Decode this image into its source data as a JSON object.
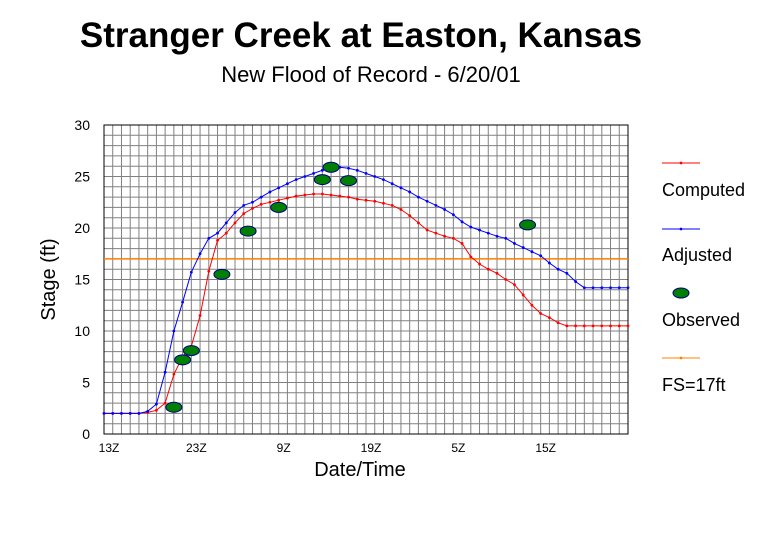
{
  "chart_data": {
    "type": "line",
    "title": "Stranger Creek at Easton, Kansas",
    "subtitle": "New Flood of Record - 6/20/01",
    "xlabel": "Date/Time",
    "ylabel": "Stage (ft)",
    "ylim": [
      0,
      30
    ],
    "yticks": [
      0,
      5,
      10,
      15,
      20,
      25,
      30
    ],
    "xlim_hours": [
      0,
      60
    ],
    "xticks": [
      {
        "h": 0,
        "label": "13Z"
      },
      {
        "h": 10,
        "label": "23Z"
      },
      {
        "h": 20,
        "label": "9Z"
      },
      {
        "h": 30,
        "label": "19Z"
      },
      {
        "h": 40,
        "label": "5Z"
      },
      {
        "h": 50,
        "label": "15Z"
      }
    ],
    "grid": true,
    "legend_position": "right",
    "series": [
      {
        "name": "Computed",
        "color": "#ff0000",
        "style": "line-dots",
        "x": [
          0,
          1,
          2,
          3,
          4,
          5,
          6,
          7,
          8,
          9,
          10,
          11,
          12,
          13,
          14,
          15,
          16,
          17,
          18,
          19,
          20,
          21,
          22,
          23,
          24,
          25,
          26,
          27,
          28,
          29,
          30,
          31,
          32,
          33,
          34,
          35,
          36,
          37,
          38,
          39,
          40,
          41,
          42,
          43,
          44,
          45,
          46,
          47,
          48,
          49,
          50,
          51,
          52,
          53,
          54,
          55,
          56,
          57,
          58,
          59,
          60
        ],
        "y": [
          2.0,
          2.0,
          2.0,
          2.0,
          2.0,
          2.1,
          2.3,
          3.0,
          5.8,
          7.5,
          8.5,
          11.5,
          15.8,
          18.8,
          19.5,
          20.5,
          21.4,
          21.9,
          22.3,
          22.5,
          22.7,
          22.9,
          23.1,
          23.2,
          23.3,
          23.3,
          23.2,
          23.1,
          23.0,
          22.8,
          22.7,
          22.6,
          22.4,
          22.2,
          21.8,
          21.2,
          20.5,
          19.8,
          19.5,
          19.2,
          19.0,
          18.5,
          17.2,
          16.5,
          16.0,
          15.6,
          15.0,
          14.5,
          13.5,
          12.5,
          11.7,
          11.3,
          10.8,
          10.5,
          10.5,
          10.5,
          10.5,
          10.5,
          10.5,
          10.5,
          10.5
        ]
      },
      {
        "name": "Adjusted",
        "color": "#0000ff",
        "style": "line-dots",
        "x": [
          0,
          1,
          2,
          3,
          4,
          5,
          6,
          7,
          8,
          9,
          10,
          11,
          12,
          13,
          14,
          15,
          16,
          17,
          18,
          19,
          20,
          21,
          22,
          23,
          24,
          25,
          26,
          27,
          28,
          29,
          30,
          31,
          32,
          33,
          34,
          35,
          36,
          37,
          38,
          39,
          40,
          41,
          42,
          43,
          44,
          45,
          46,
          47,
          48,
          49,
          50,
          51,
          52,
          53,
          54,
          55,
          56,
          57,
          58,
          59,
          60
        ],
        "y": [
          2.0,
          2.0,
          2.0,
          2.0,
          2.0,
          2.2,
          2.9,
          6.0,
          10.0,
          12.8,
          15.7,
          17.5,
          19.0,
          19.5,
          20.5,
          21.5,
          22.2,
          22.5,
          23.0,
          23.5,
          23.9,
          24.3,
          24.7,
          25.0,
          25.3,
          25.6,
          25.8,
          25.9,
          25.8,
          25.6,
          25.3,
          25.0,
          24.7,
          24.3,
          23.9,
          23.5,
          23.0,
          22.6,
          22.2,
          21.8,
          21.3,
          20.6,
          20.1,
          19.8,
          19.5,
          19.2,
          19.0,
          18.5,
          18.1,
          17.7,
          17.3,
          16.6,
          16.0,
          15.6,
          14.8,
          14.2,
          14.2,
          14.2,
          14.2,
          14.2,
          14.2
        ]
      },
      {
        "name": "Observed",
        "color": "#008000",
        "style": "ellipse-markers",
        "x": [
          8,
          9,
          10,
          13.5,
          16.5,
          20,
          25,
          26,
          28,
          48.5
        ],
        "y": [
          2.6,
          7.2,
          8.1,
          15.5,
          19.7,
          22.0,
          24.7,
          25.9,
          24.6,
          20.3
        ]
      },
      {
        "name": "FS=17ft",
        "color": "#ff8000",
        "style": "hline",
        "value": 17
      }
    ]
  }
}
